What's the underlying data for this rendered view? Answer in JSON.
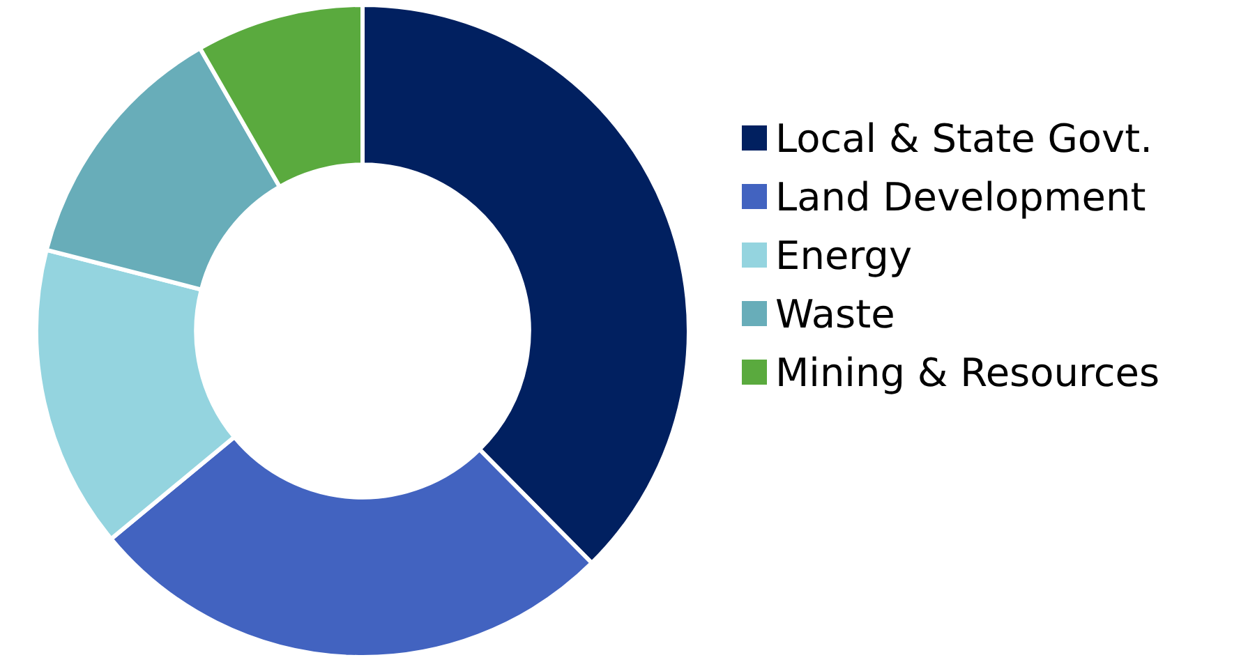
{
  "chart_data": {
    "type": "donut",
    "categories": [
      "Local & State Govt.",
      "Land Development",
      "Energy",
      "Waste",
      "Mining & Resources"
    ],
    "values": [
      37.6,
      26.4,
      15,
      12.7,
      8.3
    ],
    "colors": [
      "#012060",
      "#4263c0",
      "#94d4df",
      "#68adb9",
      "#5aaa3e"
    ],
    "legend": "right"
  }
}
